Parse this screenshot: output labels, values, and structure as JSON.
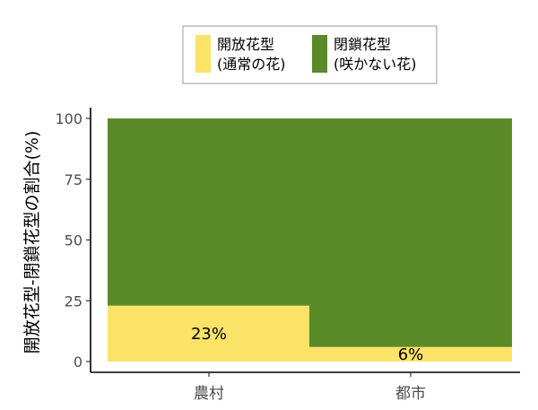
{
  "chart_data": {
    "type": "bar",
    "stacked": true,
    "categories": [
      "農村",
      "都市"
    ],
    "series": [
      {
        "name": "開放花型\n(通常の花)",
        "values": [
          23,
          6
        ],
        "color": "#FAE367"
      },
      {
        "name": "閉鎖花型\n(咲かない花)",
        "values": [
          77,
          94
        ],
        "color": "#5A8B28"
      }
    ],
    "data_labels": [
      "23%",
      "6%"
    ],
    "ylabel": "開放花型-閉鎖花型の割合(%)",
    "xlabel": "",
    "ylim": [
      0,
      100
    ],
    "yticks": [
      0,
      25,
      50,
      75,
      100
    ],
    "grid": false,
    "legend_position": "top"
  },
  "colors": {
    "open_flower": "#FAE367",
    "closed_flower": "#5A8B28",
    "axis": "#000000",
    "tick_label": "#4d4d4d"
  }
}
